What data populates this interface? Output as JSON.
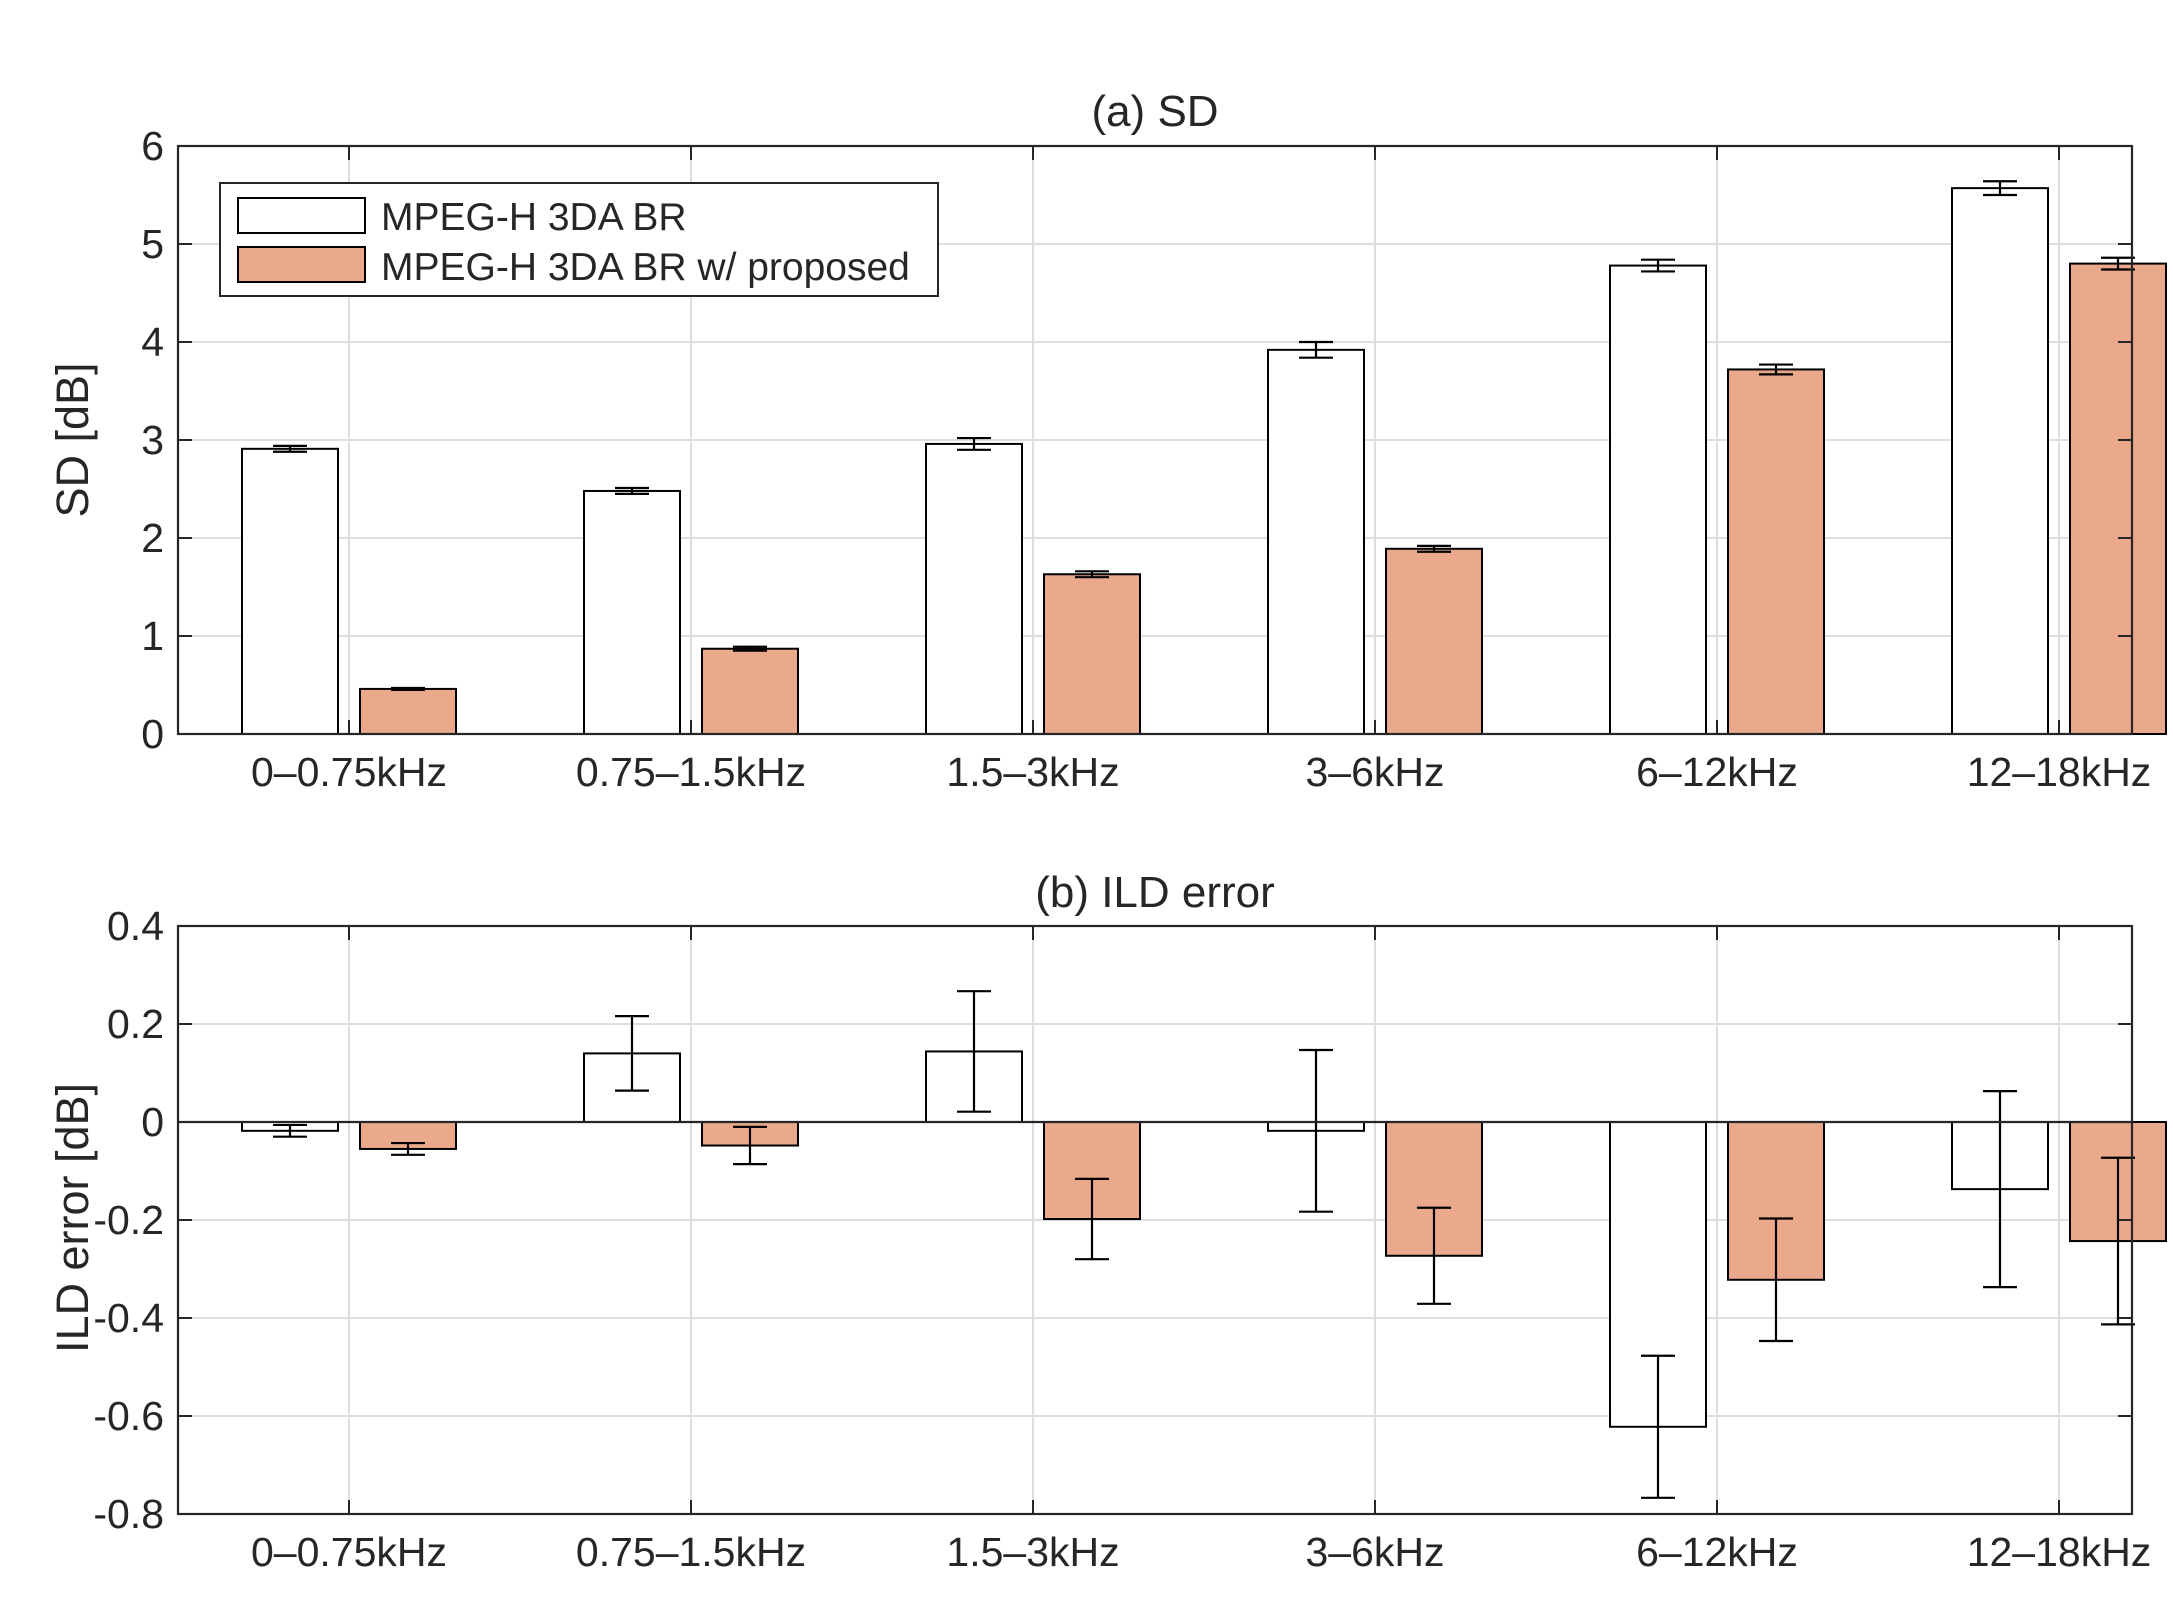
{
  "chart_data": [
    {
      "type": "bar",
      "title": "(a) SD",
      "ylabel": "SD [dB]",
      "xlabel": "",
      "ylim": [
        0,
        6
      ],
      "yticks": [
        0,
        1,
        2,
        3,
        4,
        5,
        6
      ],
      "ytick_labels": [
        "0",
        "1",
        "2",
        "3",
        "4",
        "5",
        "6"
      ],
      "grid": true,
      "legend_position": "top-left",
      "categories": [
        "0–0.75kHz",
        "0.75–1.5kHz",
        "1.5–3kHz",
        "3–6kHz",
        "6–12kHz",
        "12–18kHz"
      ],
      "series": [
        {
          "name": "MPEG-H 3DA BR",
          "color": "#ffffff",
          "values": [
            2.91,
            2.48,
            2.96,
            3.92,
            4.78,
            5.57
          ],
          "error": [
            0.03,
            0.03,
            0.06,
            0.08,
            0.06,
            0.07
          ]
        },
        {
          "name": "MPEG-H 3DA BR w/ proposed",
          "color": "#eba98c",
          "values": [
            0.46,
            0.87,
            1.63,
            1.89,
            3.72,
            4.8
          ],
          "error": [
            0.01,
            0.02,
            0.03,
            0.03,
            0.05,
            0.06
          ]
        }
      ]
    },
    {
      "type": "bar",
      "title": "(b) ILD error",
      "ylabel": "ILD error [dB]",
      "xlabel": "",
      "ylim": [
        -0.8,
        0.4
      ],
      "yticks": [
        -0.8,
        -0.6,
        -0.4,
        -0.2,
        0,
        0.2,
        0.4
      ],
      "ytick_labels": [
        "-0.8",
        "-0.6",
        "-0.4",
        "-0.2",
        "0",
        "0.2",
        "0.4"
      ],
      "grid": true,
      "categories": [
        "0–0.75kHz",
        "0.75–1.5kHz",
        "1.5–3kHz",
        "3–6kHz",
        "6–12kHz",
        "12–18kHz"
      ],
      "series": [
        {
          "name": "MPEG-H 3DA BR",
          "color": "#ffffff",
          "values": [
            -0.018,
            0.14,
            0.144,
            -0.018,
            -0.622,
            -0.137
          ],
          "error": [
            0.012,
            0.076,
            0.123,
            0.165,
            0.145,
            0.2
          ]
        },
        {
          "name": "MPEG-H 3DA BR w/ proposed",
          "color": "#eba98c",
          "values": [
            -0.055,
            -0.048,
            -0.198,
            -0.273,
            -0.322,
            -0.243
          ],
          "error": [
            0.012,
            0.038,
            0.082,
            0.098,
            0.125,
            0.17
          ]
        }
      ]
    }
  ]
}
